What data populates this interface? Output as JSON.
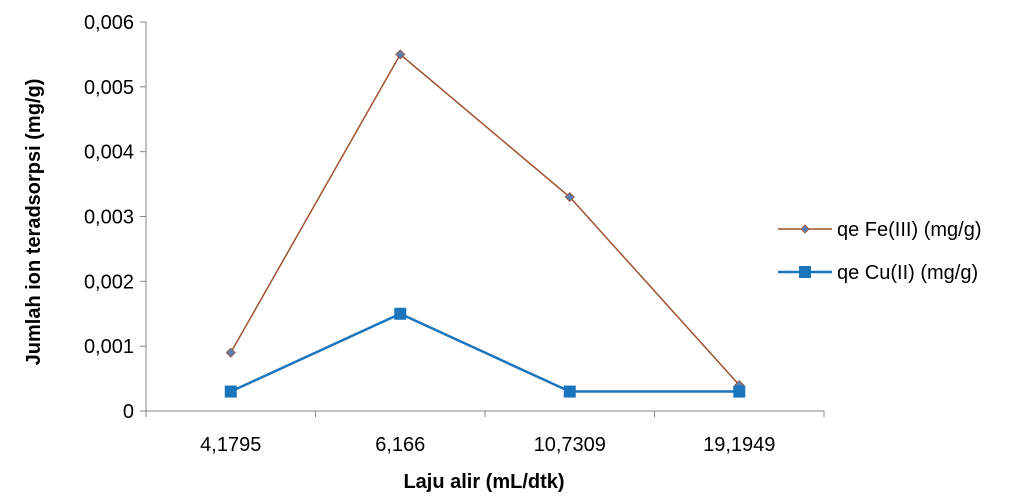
{
  "chart_data": {
    "type": "line",
    "categories": [
      "4,1795",
      "6,166",
      "10,7309",
      "19,1949"
    ],
    "xlabel": "Laju alir (mL/dtk)",
    "ylabel": "Jumlah ion teradsorpsi (mg/g)",
    "ylim": [
      0,
      0.006
    ],
    "yticks": [
      0,
      0.001,
      0.002,
      0.003,
      0.004,
      0.005,
      0.006
    ],
    "ytick_labels": [
      "0",
      "0,001",
      "0,002",
      "0,003",
      "0,004",
      "0,005",
      "0,006"
    ],
    "grid": false,
    "legend_position": "right",
    "series": [
      {
        "name": "qe Fe(III) (mg/g)",
        "values": [
          0.0009,
          0.0055,
          0.0033,
          0.0004
        ],
        "line_color": "#a0522d",
        "marker_color": "#5b7fb5",
        "marker": "diamond"
      },
      {
        "name": "qe Cu(II) (mg/g)",
        "values": [
          0.0003,
          0.0015,
          0.0003,
          0.0003
        ],
        "line_color": "#1b75bc",
        "marker_color": "#1b75bc",
        "marker": "square"
      }
    ]
  }
}
